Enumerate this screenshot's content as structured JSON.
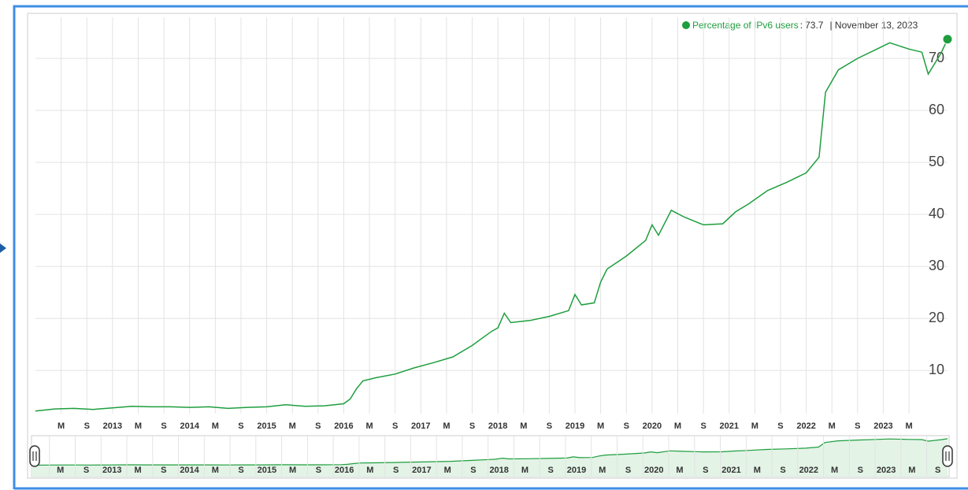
{
  "chart_data": {
    "type": "line",
    "series": [
      {
        "name": "Percentage of IPv6 users",
        "color": "#1e9e3e",
        "x": [
          "2012-01",
          "2012-04",
          "2012-07",
          "2012-10",
          "2013-01",
          "2013-04",
          "2013-07",
          "2013-10",
          "2014-01",
          "2014-04",
          "2014-07",
          "2014-10",
          "2015-01",
          "2015-04",
          "2015-07",
          "2015-10",
          "2016-01",
          "2016-02",
          "2016-03",
          "2016-04",
          "2016-06",
          "2016-09",
          "2016-12",
          "2017-03",
          "2017-06",
          "2017-09",
          "2017-12",
          "2018-01",
          "2018-02",
          "2018-03",
          "2018-06",
          "2018-09",
          "2018-12",
          "2019-01",
          "2019-02",
          "2019-04",
          "2019-05",
          "2019-06",
          "2019-09",
          "2019-12",
          "2020-01",
          "2020-02",
          "2020-04",
          "2020-06",
          "2020-09",
          "2020-12",
          "2021-02",
          "2021-04",
          "2021-07",
          "2021-10",
          "2022-01",
          "2022-03",
          "2022-04",
          "2022-06",
          "2022-09",
          "2022-12",
          "2023-02",
          "2023-05",
          "2023-07",
          "2023-08",
          "2023-10",
          "2023-11"
        ],
        "values": [
          2.2,
          2.6,
          2.7,
          2.5,
          2.8,
          3.1,
          3.0,
          3.0,
          2.9,
          3.0,
          2.7,
          2.9,
          3.0,
          3.4,
          3.1,
          3.2,
          3.6,
          4.5,
          6.5,
          8.0,
          8.6,
          9.3,
          10.5,
          11.5,
          12.6,
          14.8,
          17.5,
          18.2,
          21.0,
          19.2,
          19.6,
          20.4,
          21.5,
          24.6,
          22.6,
          23.0,
          27.0,
          29.5,
          32.0,
          35.0,
          38.0,
          36.0,
          40.8,
          39.5,
          38.0,
          38.2,
          40.5,
          42.0,
          44.6,
          46.2,
          48.0,
          51.0,
          63.5,
          67.8,
          70.0,
          71.8,
          73.0,
          71.8,
          71.2,
          67.0,
          71.0,
          73.7
        ]
      }
    ],
    "tooltip": {
      "value_prefix": ":",
      "date": "| November 13, 2023"
    },
    "xlim": [
      "2012-01",
      "2023-11"
    ],
    "ylim": [
      1.7,
      77.9
    ],
    "yticks": [
      10,
      20,
      30,
      40,
      50,
      60,
      70
    ],
    "grid": true,
    "xticks": [
      {
        "value": "2012-05",
        "label": "M"
      },
      {
        "value": "2012-09",
        "label": "S"
      },
      {
        "value": "2013-01",
        "label": "2013"
      },
      {
        "value": "2013-05",
        "label": "M"
      },
      {
        "value": "2013-09",
        "label": "S"
      },
      {
        "value": "2014-01",
        "label": "2014"
      },
      {
        "value": "2014-05",
        "label": "M"
      },
      {
        "value": "2014-09",
        "label": "S"
      },
      {
        "value": "2015-01",
        "label": "2015"
      },
      {
        "value": "2015-05",
        "label": "M"
      },
      {
        "value": "2015-09",
        "label": "S"
      },
      {
        "value": "2016-01",
        "label": "2016"
      },
      {
        "value": "2016-05",
        "label": "M"
      },
      {
        "value": "2016-09",
        "label": "S"
      },
      {
        "value": "2017-01",
        "label": "2017"
      },
      {
        "value": "2017-05",
        "label": "M"
      },
      {
        "value": "2017-09",
        "label": "S"
      },
      {
        "value": "2018-01",
        "label": "2018"
      },
      {
        "value": "2018-05",
        "label": "M"
      },
      {
        "value": "2018-09",
        "label": "S"
      },
      {
        "value": "2019-01",
        "label": "2019"
      },
      {
        "value": "2019-05",
        "label": "M"
      },
      {
        "value": "2019-09",
        "label": "S"
      },
      {
        "value": "2020-01",
        "label": "2020"
      },
      {
        "value": "2020-05",
        "label": "M"
      },
      {
        "value": "2020-09",
        "label": "S"
      },
      {
        "value": "2021-01",
        "label": "2021"
      },
      {
        "value": "2021-05",
        "label": "M"
      },
      {
        "value": "2021-09",
        "label": "S"
      },
      {
        "value": "2022-01",
        "label": "2022"
      },
      {
        "value": "2022-05",
        "label": "M"
      },
      {
        "value": "2022-09",
        "label": "S"
      },
      {
        "value": "2023-01",
        "label": "2023"
      },
      {
        "value": "2023-05",
        "label": "M"
      }
    ],
    "navigator": {
      "xticks": [
        {
          "value": "2012-05",
          "label": "M"
        },
        {
          "value": "2012-09",
          "label": "S"
        },
        {
          "value": "2013-01",
          "label": "2013"
        },
        {
          "value": "2013-05",
          "label": "M"
        },
        {
          "value": "2013-09",
          "label": "S"
        },
        {
          "value": "2014-01",
          "label": "2014"
        },
        {
          "value": "2014-05",
          "label": "M"
        },
        {
          "value": "2014-09",
          "label": "S"
        },
        {
          "value": "2015-01",
          "label": "2015"
        },
        {
          "value": "2015-05",
          "label": "M"
        },
        {
          "value": "2015-09",
          "label": "S"
        },
        {
          "value": "2016-01",
          "label": "2016"
        },
        {
          "value": "2016-05",
          "label": "M"
        },
        {
          "value": "2016-09",
          "label": "S"
        },
        {
          "value": "2017-01",
          "label": "2017"
        },
        {
          "value": "2017-05",
          "label": "M"
        },
        {
          "value": "2017-09",
          "label": "S"
        },
        {
          "value": "2018-01",
          "label": "2018"
        },
        {
          "value": "2018-05",
          "label": "M"
        },
        {
          "value": "2018-09",
          "label": "S"
        },
        {
          "value": "2019-01",
          "label": "2019"
        },
        {
          "value": "2019-05",
          "label": "M"
        },
        {
          "value": "2019-09",
          "label": "S"
        },
        {
          "value": "2020-01",
          "label": "2020"
        },
        {
          "value": "2020-05",
          "label": "M"
        },
        {
          "value": "2020-09",
          "label": "S"
        },
        {
          "value": "2021-01",
          "label": "2021"
        },
        {
          "value": "2021-05",
          "label": "M"
        },
        {
          "value": "2021-09",
          "label": "S"
        },
        {
          "value": "2022-01",
          "label": "2022"
        },
        {
          "value": "2022-05",
          "label": "M"
        },
        {
          "value": "2022-09",
          "label": "S"
        },
        {
          "value": "2023-01",
          "label": "2023"
        },
        {
          "value": "2023-05",
          "label": "M"
        },
        {
          "value": "2023-09",
          "label": "S"
        }
      ]
    }
  }
}
